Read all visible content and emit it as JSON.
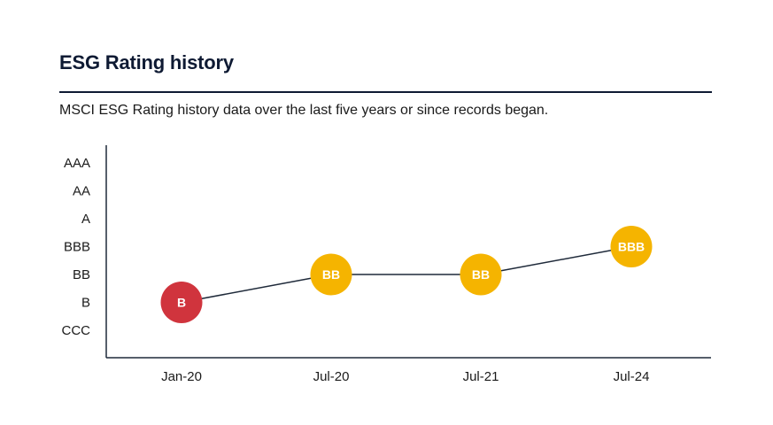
{
  "header": {
    "title": "ESG Rating history",
    "subtitle": "MSCI ESG Rating history data over the last five years or since records began."
  },
  "chart_data": {
    "type": "line",
    "categories": [
      "Jan-20",
      "Jul-20",
      "Jul-21",
      "Jul-24"
    ],
    "y_levels": [
      "CCC",
      "B",
      "BB",
      "BBB",
      "A",
      "AA",
      "AAA"
    ],
    "values": [
      "B",
      "BB",
      "BB",
      "BBB"
    ],
    "point_colors": [
      "#d0343d",
      "#f5b400",
      "#f5b400",
      "#f5b400"
    ],
    "line_color": "#1f2a3a",
    "grid": false
  }
}
